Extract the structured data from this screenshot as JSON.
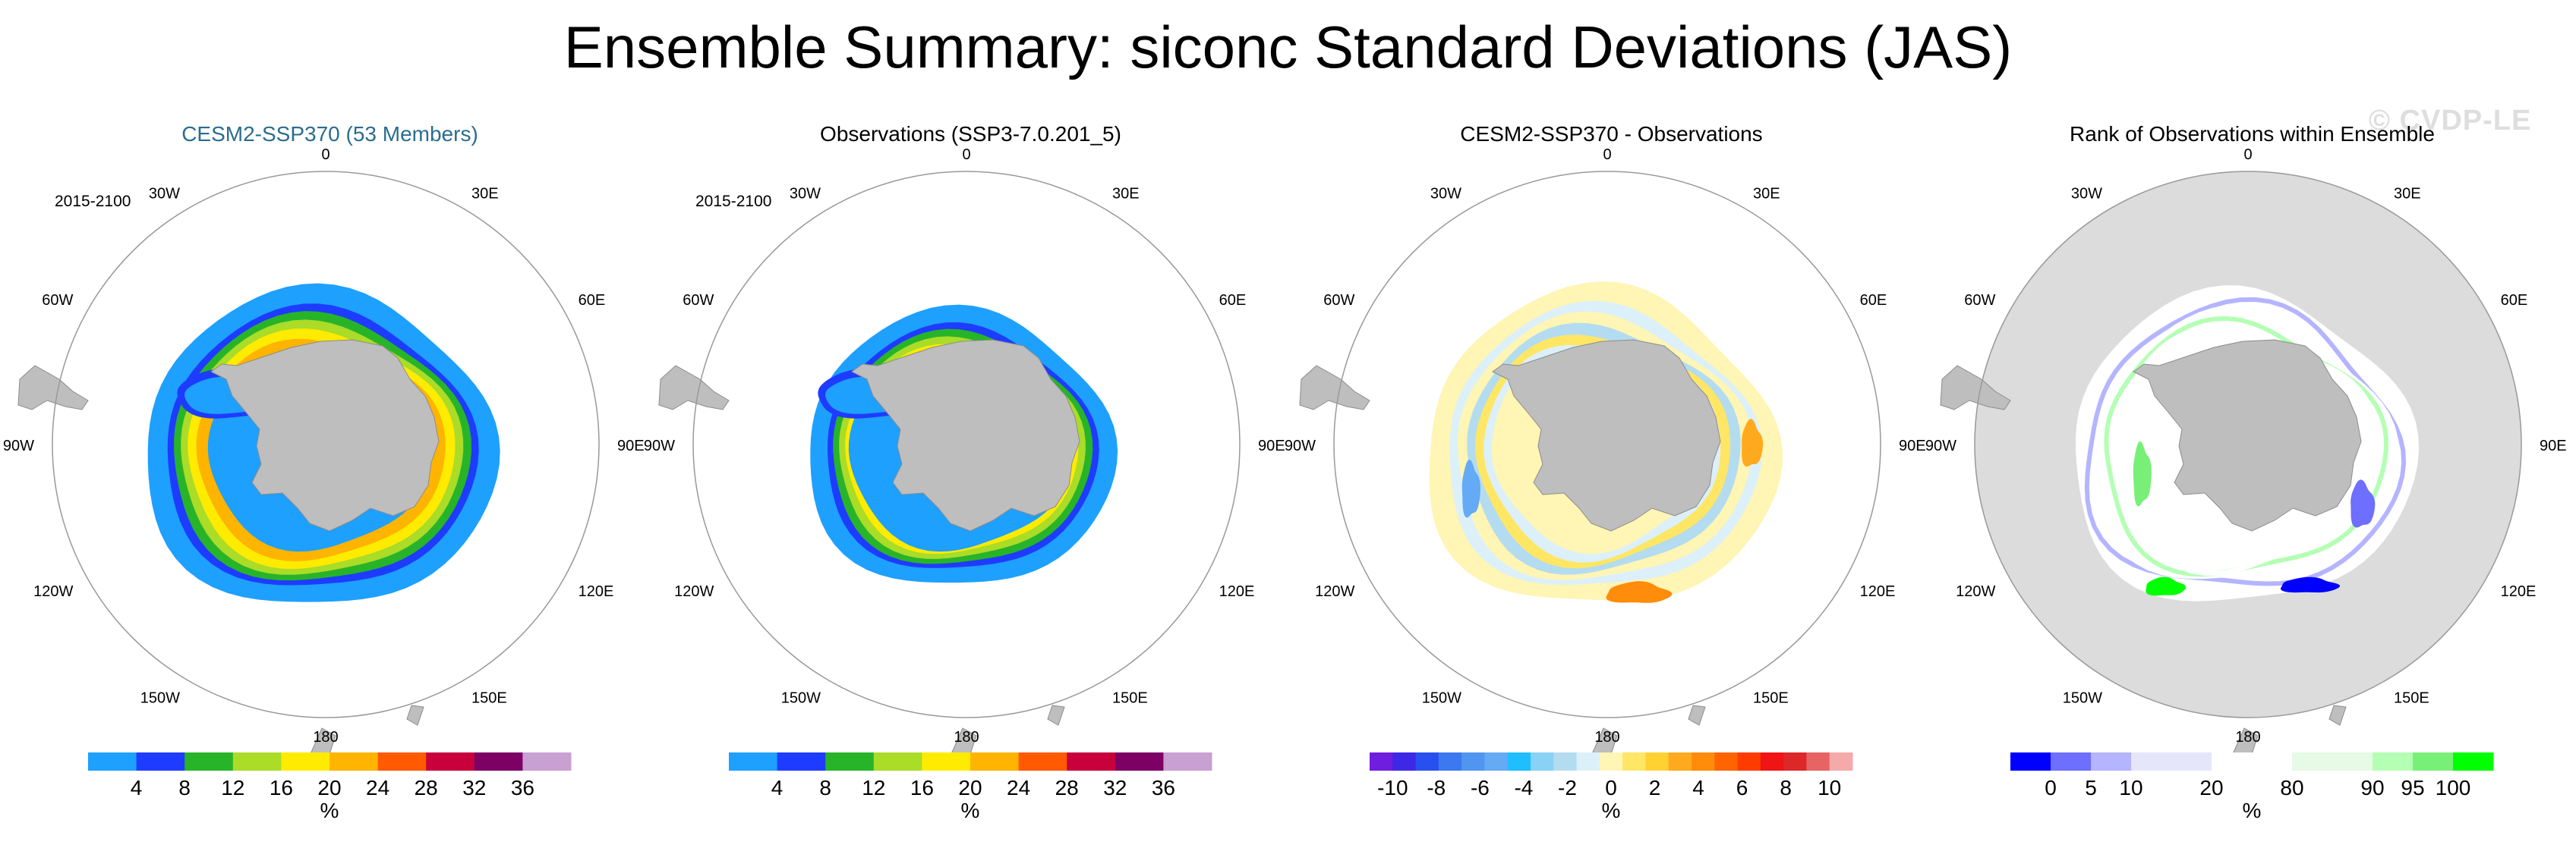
{
  "title": "Ensemble Summary: siconc Standard Deviations (JAS)",
  "watermark": "© CVDP-LE",
  "colors": {
    "land": "#bebebe",
    "ocean_outline": "#999999",
    "rank_bg": "#dcdcdc"
  },
  "lon_labels": [
    "0",
    "30E",
    "60E",
    "90E",
    "120E",
    "150E",
    "180",
    "150W",
    "120W",
    "90W",
    "60W",
    "30W"
  ],
  "panels": [
    {
      "title": "CESM2-SSP370 (53 Members)",
      "period": "2015-2100",
      "kind": "sd_model",
      "colorbar": {
        "colors": [
          "#1ea0ff",
          "#1e3cff",
          "#28b428",
          "#aadc28",
          "#ffeb00",
          "#ffb400",
          "#ff5a00",
          "#c8003c",
          "#7d0064",
          "#c8a0d2"
        ],
        "tick_labels": [
          "4",
          "8",
          "12",
          "16",
          "20",
          "24",
          "28",
          "32",
          "36"
        ],
        "unit": "%"
      }
    },
    {
      "title": "Observations (SSP3-7.0.201_5)",
      "period": "2015-2100",
      "kind": "sd_obs",
      "colorbar": {
        "colors": [
          "#1ea0ff",
          "#1e3cff",
          "#28b428",
          "#aadc28",
          "#ffeb00",
          "#ffb400",
          "#ff5a00",
          "#c8003c",
          "#7d0064",
          "#c8a0d2"
        ],
        "tick_labels": [
          "4",
          "8",
          "12",
          "16",
          "20",
          "24",
          "28",
          "32",
          "36"
        ],
        "unit": "%"
      }
    },
    {
      "title": "CESM2-SSP370 - Observations",
      "period": "",
      "kind": "diff",
      "colorbar": {
        "colors": [
          "#6e1edc",
          "#3c28e6",
          "#2850f0",
          "#3c78f0",
          "#5096f0",
          "#64aaf5",
          "#1ebeff",
          "#87d2f5",
          "#b4dcf0",
          "#dcf0fa",
          "#fff5b4",
          "#ffe664",
          "#ffd232",
          "#ffaa1e",
          "#ff8c0a",
          "#ff6400",
          "#ff3c00",
          "#f01414",
          "#dc2828",
          "#e66464",
          "#f5aaaa"
        ],
        "tick_labels": [
          "-10",
          "-8",
          "-6",
          "-4",
          "-2",
          "0",
          "2",
          "4",
          "6",
          "8",
          "10"
        ],
        "unit": "%"
      }
    },
    {
      "title": "Rank of Observations within Ensemble",
      "period": "",
      "kind": "rank",
      "colorbar": {
        "colors": [
          "#0000ff",
          "#6e6eff",
          "#b4b4ff",
          "#e6e6fa",
          "#e6e6fa",
          "#ffffff",
          "#ffffff",
          "#e6fae6",
          "#e6fae6",
          "#b4ffb4",
          "#78f078",
          "#00ff00"
        ],
        "tick_labels": [
          "0",
          "5",
          "10",
          "20",
          "80",
          "90",
          "95",
          "100"
        ],
        "unit": "%"
      }
    }
  ]
}
